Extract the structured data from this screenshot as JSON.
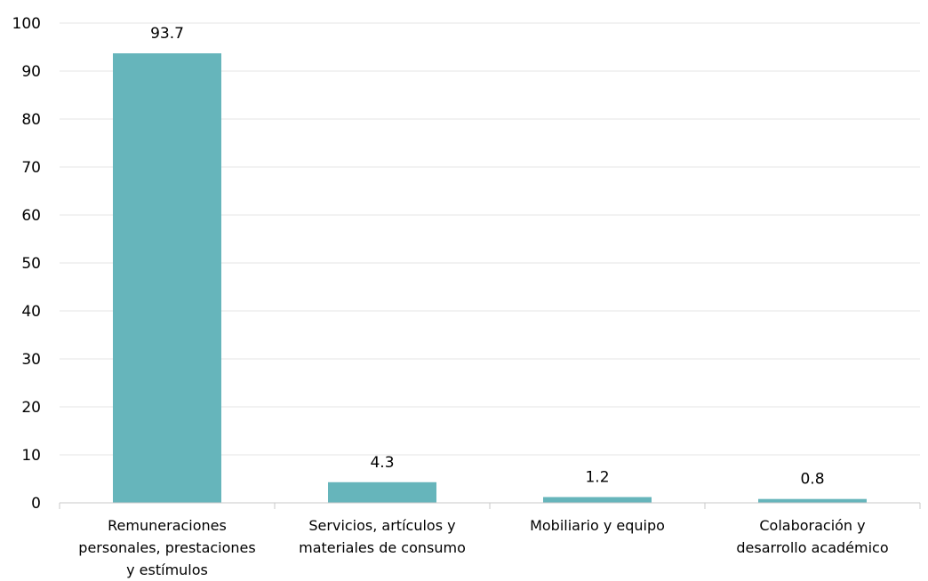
{
  "chart_data": {
    "type": "bar",
    "categories": [
      [
        "Remuneraciones",
        "personales, prestaciones",
        "y estímulos"
      ],
      [
        "Servicios, artículos y",
        "materiales de consumo"
      ],
      [
        "Mobiliario y equipo"
      ],
      [
        "Colaboración y",
        "desarrollo académico"
      ]
    ],
    "values": [
      93.7,
      4.3,
      1.2,
      0.8
    ],
    "data_labels": [
      "93.7",
      "4.3",
      "1.2",
      "0.8"
    ],
    "y_ticks": [
      "0",
      "10",
      "20",
      "30",
      "40",
      "50",
      "60",
      "70",
      "80",
      "90",
      "100"
    ],
    "ylim": [
      0,
      100
    ],
    "grid": true,
    "legend": "none",
    "colors": {
      "bar": "#66b5bb",
      "grid": "#e4e4e4",
      "axis": "#c8c8c8"
    }
  }
}
